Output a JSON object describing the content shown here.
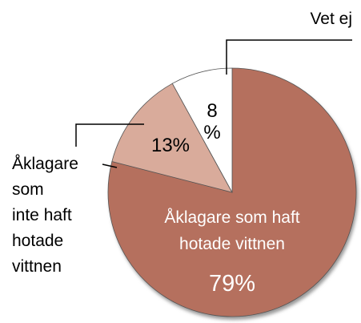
{
  "chart_data": {
    "type": "pie",
    "categories": [
      "Åklagare som haft hotade vittnen",
      "Åklagare som inte haft hotade vittnen",
      "Vet ej"
    ],
    "values": [
      79,
      13,
      8
    ],
    "value_labels": [
      "79%",
      "13%",
      "8 %"
    ],
    "colors": [
      "#b5705e",
      "#d9ab9b",
      "#ffffff"
    ]
  }
}
